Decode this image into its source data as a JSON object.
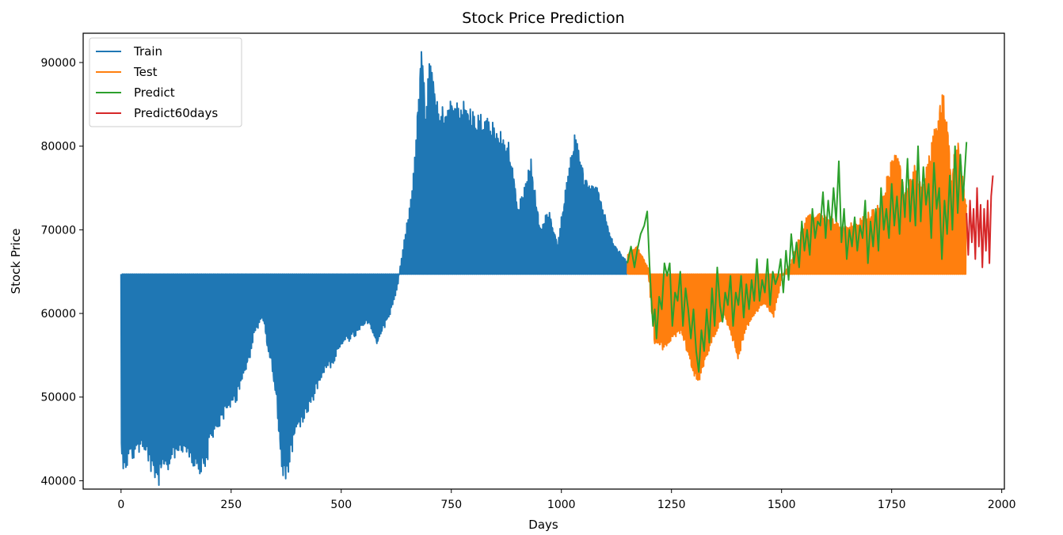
{
  "chart_data": {
    "type": "line",
    "title": "Stock Price Prediction",
    "xlabel": "Days",
    "ylabel": "Stock Price",
    "xlim": [
      -86,
      2006
    ],
    "ylim": [
      39000,
      93500
    ],
    "xticks": [
      0,
      250,
      500,
      750,
      1000,
      1250,
      1500,
      1750,
      2000
    ],
    "yticks": [
      40000,
      50000,
      60000,
      70000,
      80000,
      90000
    ],
    "xtick_labels": [
      "0",
      "250",
      "500",
      "750",
      "1000",
      "1250",
      "1500",
      "1750",
      "2000"
    ],
    "ytick_labels": [
      "40000",
      "50000",
      "60000",
      "70000",
      "80000",
      "90000"
    ],
    "grid": false,
    "legend_position": "upper-left",
    "baseline": 64700,
    "series": [
      {
        "name": "Train",
        "color": "#1f77b4",
        "x_start": 0,
        "x_end": 1150,
        "envelope": [
          [
            0,
            44000
          ],
          [
            10,
            43800
          ],
          [
            40,
            45500
          ],
          [
            60,
            44500
          ],
          [
            75,
            41500
          ],
          [
            100,
            43000
          ],
          [
            120,
            45000
          ],
          [
            150,
            45500
          ],
          [
            160,
            44000
          ],
          [
            180,
            43300
          ],
          [
            190,
            43500
          ],
          [
            200,
            46000
          ],
          [
            230,
            49000
          ],
          [
            260,
            51000
          ],
          [
            270,
            53000
          ],
          [
            290,
            55000
          ],
          [
            300,
            58000
          ],
          [
            320,
            60000
          ],
          [
            330,
            57000
          ],
          [
            340,
            55000
          ],
          [
            350,
            51000
          ],
          [
            365,
            43000
          ],
          [
            375,
            42500
          ],
          [
            385,
            45000
          ],
          [
            400,
            48000
          ],
          [
            420,
            49000
          ],
          [
            440,
            52000
          ],
          [
            460,
            54000
          ],
          [
            480,
            55000
          ],
          [
            500,
            57000
          ],
          [
            530,
            58000
          ],
          [
            560,
            59500
          ],
          [
            580,
            57000
          ],
          [
            610,
            60500
          ],
          [
            625,
            63000
          ],
          [
            640,
            68000
          ],
          [
            660,
            74000
          ],
          [
            680,
            91000
          ],
          [
            690,
            84000
          ],
          [
            700,
            89500
          ],
          [
            720,
            83000
          ],
          [
            760,
            85000
          ],
          [
            790,
            83500
          ],
          [
            840,
            82000
          ],
          [
            880,
            79500
          ],
          [
            900,
            72000
          ],
          [
            930,
            77500
          ],
          [
            950,
            70000
          ],
          [
            970,
            72000
          ],
          [
            990,
            68000
          ],
          [
            1010,
            75000
          ],
          [
            1030,
            80500
          ],
          [
            1050,
            76000
          ],
          [
            1080,
            75000
          ],
          [
            1100,
            71000
          ],
          [
            1120,
            68000
          ],
          [
            1150,
            66000
          ]
        ]
      },
      {
        "name": "Test",
        "color": "#ff7f0e",
        "x_start": 1150,
        "x_end": 1920,
        "envelope": [
          [
            1150,
            67000
          ],
          [
            1170,
            68000
          ],
          [
            1195,
            65500
          ],
          [
            1210,
            57000
          ],
          [
            1230,
            56500
          ],
          [
            1250,
            57500
          ],
          [
            1270,
            58500
          ],
          [
            1290,
            55000
          ],
          [
            1310,
            52500
          ],
          [
            1330,
            56000
          ],
          [
            1350,
            58500
          ],
          [
            1370,
            60000
          ],
          [
            1390,
            57000
          ],
          [
            1400,
            55500
          ],
          [
            1420,
            59000
          ],
          [
            1440,
            60500
          ],
          [
            1460,
            61500
          ],
          [
            1480,
            60000
          ],
          [
            1500,
            64500
          ],
          [
            1520,
            66000
          ],
          [
            1560,
            72000
          ],
          [
            1600,
            71500
          ],
          [
            1640,
            70000
          ],
          [
            1680,
            71000
          ],
          [
            1720,
            72500
          ],
          [
            1760,
            79500
          ],
          [
            1780,
            74000
          ],
          [
            1800,
            77000
          ],
          [
            1820,
            75000
          ],
          [
            1840,
            79500
          ],
          [
            1860,
            85500
          ],
          [
            1870,
            84500
          ],
          [
            1885,
            76500
          ],
          [
            1900,
            80500
          ],
          [
            1920,
            72000
          ]
        ]
      },
      {
        "name": "Predict",
        "color": "#2ca02c",
        "x_start": 1150,
        "x_end": 1920,
        "points": [
          [
            1150,
            66000
          ],
          [
            1158,
            68000
          ],
          [
            1166,
            65500
          ],
          [
            1172,
            67500
          ],
          [
            1180,
            69500
          ],
          [
            1188,
            70500
          ],
          [
            1195,
            72200
          ],
          [
            1200,
            66000
          ],
          [
            1204,
            62000
          ],
          [
            1208,
            58500
          ],
          [
            1212,
            60500
          ],
          [
            1216,
            57000
          ],
          [
            1222,
            62000
          ],
          [
            1228,
            60500
          ],
          [
            1234,
            66000
          ],
          [
            1240,
            64500
          ],
          [
            1246,
            66000
          ],
          [
            1252,
            58500
          ],
          [
            1258,
            62500
          ],
          [
            1264,
            61500
          ],
          [
            1270,
            65000
          ],
          [
            1276,
            58500
          ],
          [
            1282,
            63000
          ],
          [
            1288,
            60500
          ],
          [
            1294,
            57000
          ],
          [
            1300,
            60500
          ],
          [
            1306,
            55500
          ],
          [
            1312,
            53000
          ],
          [
            1318,
            58000
          ],
          [
            1324,
            55500
          ],
          [
            1330,
            60500
          ],
          [
            1336,
            56500
          ],
          [
            1342,
            63000
          ],
          [
            1348,
            58500
          ],
          [
            1354,
            65500
          ],
          [
            1360,
            61000
          ],
          [
            1366,
            59000
          ],
          [
            1372,
            62500
          ],
          [
            1378,
            61000
          ],
          [
            1384,
            64500
          ],
          [
            1390,
            58500
          ],
          [
            1396,
            62500
          ],
          [
            1402,
            61000
          ],
          [
            1408,
            64500
          ],
          [
            1414,
            59500
          ],
          [
            1420,
            63500
          ],
          [
            1426,
            60500
          ],
          [
            1432,
            64000
          ],
          [
            1438,
            61500
          ],
          [
            1444,
            66500
          ],
          [
            1450,
            61500
          ],
          [
            1456,
            64000
          ],
          [
            1462,
            62500
          ],
          [
            1468,
            66500
          ],
          [
            1474,
            61000
          ],
          [
            1480,
            65000
          ],
          [
            1486,
            63500
          ],
          [
            1492,
            64500
          ],
          [
            1498,
            66500
          ],
          [
            1504,
            62500
          ],
          [
            1510,
            67500
          ],
          [
            1516,
            64000
          ],
          [
            1522,
            69500
          ],
          [
            1528,
            66000
          ],
          [
            1534,
            68500
          ],
          [
            1540,
            65500
          ],
          [
            1546,
            71000
          ],
          [
            1552,
            67500
          ],
          [
            1558,
            70000
          ],
          [
            1564,
            67000
          ],
          [
            1570,
            72500
          ],
          [
            1576,
            69000
          ],
          [
            1582,
            71000
          ],
          [
            1588,
            70500
          ],
          [
            1594,
            74500
          ],
          [
            1600,
            69000
          ],
          [
            1606,
            73500
          ],
          [
            1612,
            70000
          ],
          [
            1618,
            75000
          ],
          [
            1624,
            71000
          ],
          [
            1630,
            78200
          ],
          [
            1636,
            68500
          ],
          [
            1642,
            72500
          ],
          [
            1648,
            66500
          ],
          [
            1654,
            70000
          ],
          [
            1660,
            68000
          ],
          [
            1666,
            71500
          ],
          [
            1672,
            67500
          ],
          [
            1678,
            70500
          ],
          [
            1684,
            69000
          ],
          [
            1690,
            73500
          ],
          [
            1696,
            66000
          ],
          [
            1702,
            71000
          ],
          [
            1708,
            68000
          ],
          [
            1714,
            72500
          ],
          [
            1720,
            67500
          ],
          [
            1726,
            75000
          ],
          [
            1732,
            70000
          ],
          [
            1738,
            72500
          ],
          [
            1744,
            69000
          ],
          [
            1750,
            75500
          ],
          [
            1756,
            70500
          ],
          [
            1762,
            74000
          ],
          [
            1768,
            69500
          ],
          [
            1774,
            76000
          ],
          [
            1780,
            71500
          ],
          [
            1786,
            78500
          ],
          [
            1792,
            71000
          ],
          [
            1798,
            76000
          ],
          [
            1804,
            70500
          ],
          [
            1810,
            80000
          ],
          [
            1816,
            71000
          ],
          [
            1822,
            77500
          ],
          [
            1828,
            73000
          ],
          [
            1834,
            75500
          ],
          [
            1840,
            69000
          ],
          [
            1846,
            78000
          ],
          [
            1852,
            72500
          ],
          [
            1858,
            75000
          ],
          [
            1864,
            66500
          ],
          [
            1870,
            73500
          ],
          [
            1876,
            69500
          ],
          [
            1882,
            76500
          ],
          [
            1888,
            70000
          ],
          [
            1894,
            80000
          ],
          [
            1900,
            72000
          ],
          [
            1906,
            79000
          ],
          [
            1912,
            73500
          ],
          [
            1920,
            80500
          ]
        ]
      },
      {
        "name": "Predict60days",
        "color": "#d62728",
        "x_start": 1920,
        "x_end": 1980,
        "points": [
          [
            1920,
            72000
          ],
          [
            1924,
            67000
          ],
          [
            1928,
            73500
          ],
          [
            1932,
            68500
          ],
          [
            1936,
            72500
          ],
          [
            1940,
            66500
          ],
          [
            1944,
            75000
          ],
          [
            1948,
            68000
          ],
          [
            1952,
            73000
          ],
          [
            1956,
            65500
          ],
          [
            1960,
            72500
          ],
          [
            1964,
            67500
          ],
          [
            1968,
            73500
          ],
          [
            1972,
            66000
          ],
          [
            1976,
            74000
          ],
          [
            1980,
            76500
          ]
        ]
      }
    ]
  }
}
